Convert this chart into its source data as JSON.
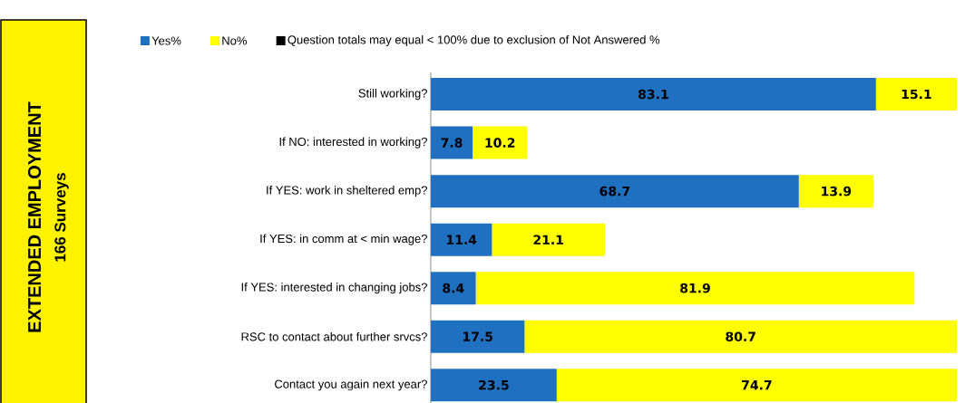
{
  "chart_data": {
    "type": "bar",
    "orientation": "horizontal",
    "stacked": true,
    "data_labels": true,
    "title": "EXTENDED EMPLOYMENT",
    "subtitle": "166 Surveys",
    "categories": [
      "Still working?",
      "If NO: interested in working?",
      "If YES: work in sheltered emp?",
      "If YES: in comm at < min wage?",
      "If YES: interested in changing jobs?",
      "RSC to contact about further srvcs?",
      "Contact you again next year?"
    ],
    "series": [
      {
        "name": "Yes%",
        "color": "#1f70c1",
        "values": [
          83.1,
          7.8,
          68.7,
          11.4,
          8.4,
          17.5,
          23.5
        ]
      },
      {
        "name": "No%",
        "color": "#ffff00",
        "values": [
          15.1,
          10.2,
          13.9,
          21.1,
          81.9,
          80.7,
          74.7
        ]
      }
    ],
    "annotations": [
      "Question totals may equal < 100% due to exclusion of Not Answered %"
    ],
    "legend": "top"
  }
}
